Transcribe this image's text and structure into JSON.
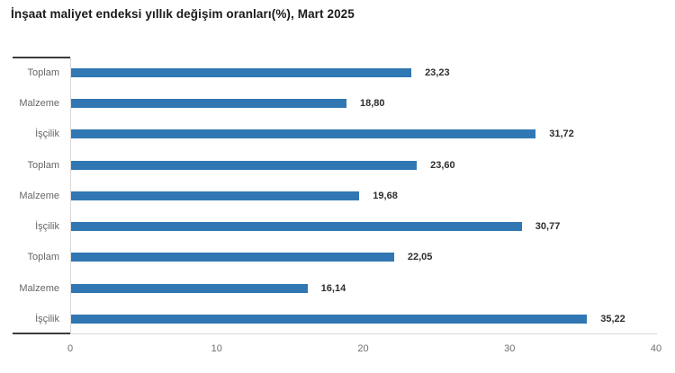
{
  "title": "İnşaat maliyet endeksi yıllık değişim oranları(%), Mart 2025",
  "chart_data": {
    "type": "bar",
    "orientation": "horizontal",
    "title": "İnşaat maliyet endeksi yıllık değişim oranları(%), Mart 2025",
    "categories": [
      "Toplam",
      "Malzeme",
      "İşçilik",
      "Toplam",
      "Malzeme",
      "İşçilik",
      "Toplam",
      "Malzeme",
      "İşçilik"
    ],
    "values": [
      23.23,
      18.8,
      31.72,
      23.6,
      19.68,
      30.77,
      22.05,
      16.14,
      35.22
    ],
    "value_labels": [
      "23,23",
      "18,80",
      "31,72",
      "23,60",
      "19,68",
      "30,77",
      "22,05",
      "16,14",
      "35,22"
    ],
    "xticks": [
      0,
      10,
      20,
      30,
      40
    ],
    "xtick_labels": [
      "0",
      "10",
      "20",
      "30",
      "40"
    ],
    "xlim": [
      0,
      40
    ],
    "xlabel": "",
    "ylabel": "",
    "grid": false,
    "legend": false,
    "bar_color": "#3077b3"
  },
  "colors": {
    "bar": "#3077b3",
    "axis_light": "#d9d9d9",
    "axis_dark": "#3b3b3b",
    "label_gray": "#666666",
    "value_text": "#2e2e2e",
    "title_text": "#1a1a1a",
    "background": "#ffffff"
  }
}
